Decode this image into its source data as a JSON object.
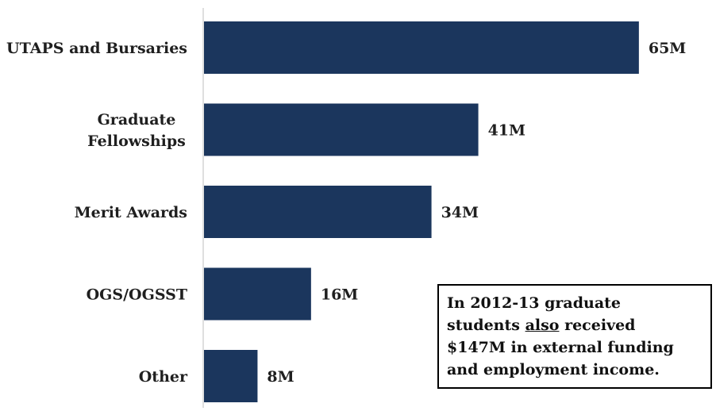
{
  "chart_data": {
    "type": "bar",
    "orientation": "horizontal",
    "categories": [
      [
        "UTAPS and Bursaries"
      ],
      [
        "Graduate",
        "Fellowships"
      ],
      [
        "Merit Awards"
      ],
      [
        "OGS/OGSST"
      ],
      [
        "Other"
      ]
    ],
    "values": [
      65,
      41,
      34,
      16,
      8
    ],
    "value_labels": [
      "65M",
      "41M",
      "34M",
      "16M",
      "8M"
    ],
    "xlim": [
      0,
      70
    ],
    "bar_color": "#1b365d",
    "grid": false,
    "legend": "none"
  },
  "callout": {
    "line1": "In 2012-13 graduate",
    "line2_a": "students ",
    "line2_u": "also",
    "line2_b": " received",
    "line3": "$147M in external funding",
    "line4": "and employment income."
  }
}
